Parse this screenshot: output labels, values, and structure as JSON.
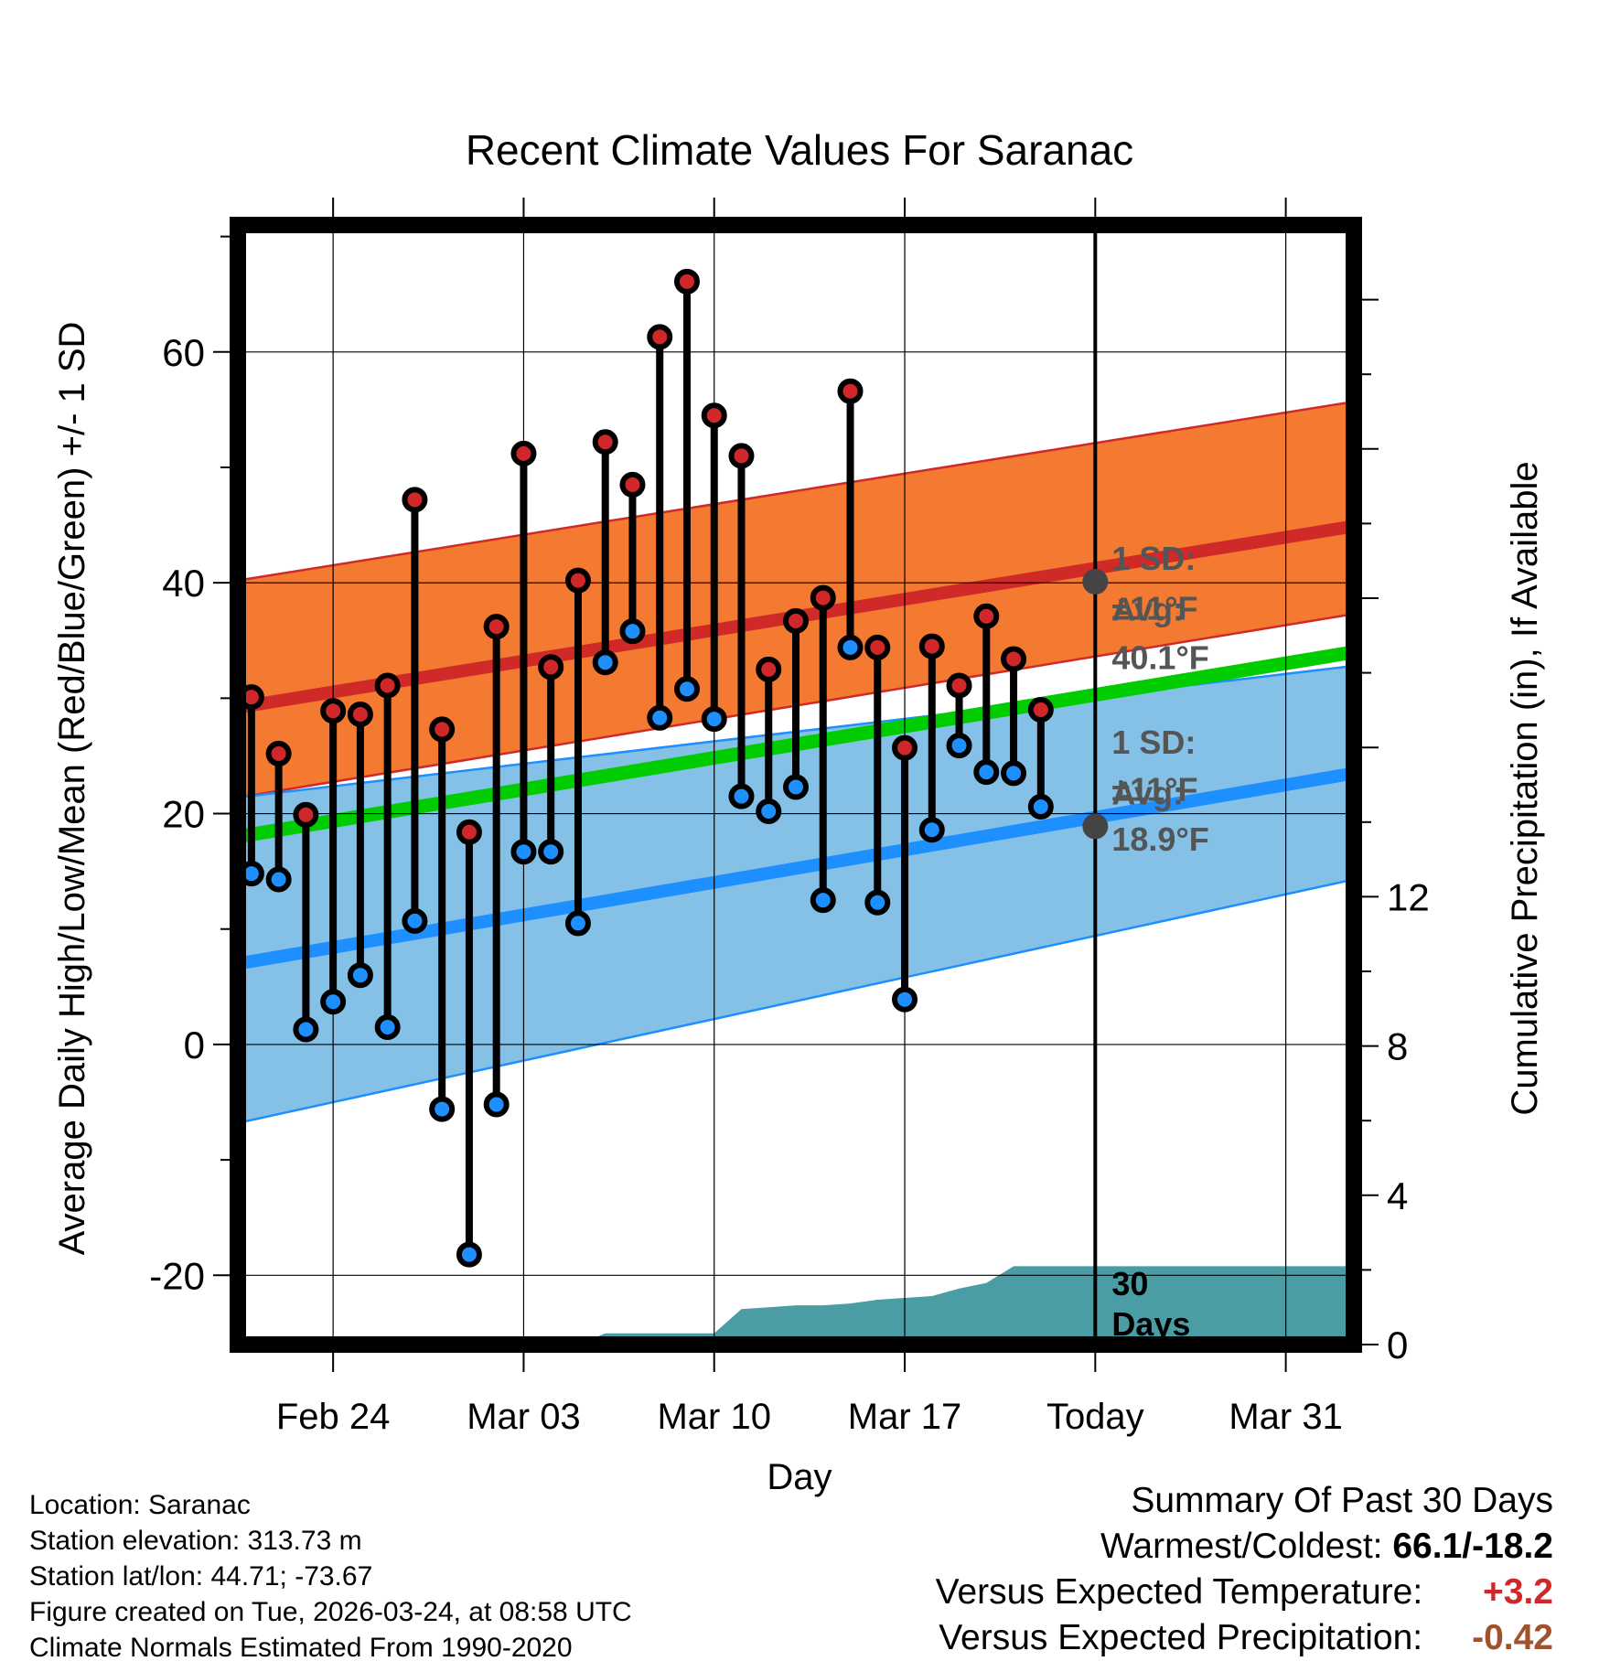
{
  "chart_data": {
    "type": "line",
    "title": "Recent Climate Values For Saranac",
    "xlabel": "Day",
    "ylabel": "Average Daily High/Low/Mean (Red/Blue/Green) +/- 1 SD",
    "y2label": "Cumulative Precipitation (in), If Available",
    "ylim": [
      -26,
      71
    ],
    "y2lim": [
      0,
      30
    ],
    "xlim": [
      -0.5,
      40.5
    ],
    "x_ticks": [
      {
        "day": 3,
        "label": "Feb 24"
      },
      {
        "day": 10,
        "label": "Mar 03"
      },
      {
        "day": 17,
        "label": "Mar 10"
      },
      {
        "day": 24,
        "label": "Mar 17"
      },
      {
        "day": 31,
        "label": "Today"
      },
      {
        "day": 38,
        "label": "Mar 31"
      }
    ],
    "y_ticks": [
      -20,
      0,
      20,
      40,
      60
    ],
    "y2_ticks": [
      0,
      4,
      8,
      12
    ],
    "today_index": 31,
    "observed": {
      "days": [
        0,
        1,
        2,
        3,
        4,
        5,
        6,
        7,
        8,
        9,
        10,
        11,
        12,
        13,
        14,
        15,
        16,
        17,
        18,
        19,
        20,
        21,
        22,
        23,
        24,
        25,
        26,
        27,
        28,
        29
      ],
      "high": [
        30.1,
        25.2,
        19.9,
        28.9,
        28.6,
        31.1,
        47.2,
        27.3,
        18.4,
        36.2,
        51.2,
        32.7,
        40.2,
        52.2,
        48.5,
        61.3,
        66.1,
        54.5,
        51.0,
        32.5,
        36.7,
        38.7,
        56.6,
        34.4,
        25.7,
        34.5,
        31.1,
        37.1,
        33.4,
        29.0
      ],
      "low": [
        14.8,
        14.3,
        1.3,
        3.7,
        6.0,
        1.5,
        10.7,
        -5.6,
        -18.2,
        -5.2,
        16.7,
        16.7,
        10.5,
        33.1,
        35.8,
        28.3,
        30.8,
        28.2,
        21.5,
        20.2,
        22.3,
        12.5,
        34.4,
        12.3,
        3.9,
        18.6,
        25.9,
        23.6,
        23.5,
        20.6
      ]
    },
    "normals": {
      "days": [
        -0.5,
        40.5
      ],
      "high_avg": [
        29.2,
        44.9
      ],
      "high_sd_upper": [
        40.2,
        55.7
      ],
      "high_sd_lower": [
        21.4,
        37.3
      ],
      "low_avg": [
        7.0,
        23.5
      ],
      "low_sd_upper": [
        21.4,
        32.8
      ],
      "low_sd_lower": [
        -6.8,
        14.3
      ],
      "mean_avg": [
        18.0,
        34.0
      ]
    },
    "precip_cumulative": {
      "days": [
        12,
        13,
        14,
        15,
        16,
        17,
        18,
        19,
        20,
        21,
        22,
        23,
        24,
        25,
        26,
        27,
        28,
        29,
        40.5
      ],
      "values": [
        0.0,
        0.3,
        0.3,
        0.3,
        0.3,
        0.3,
        0.95,
        1.0,
        1.05,
        1.05,
        1.1,
        1.2,
        1.25,
        1.3,
        1.5,
        1.65,
        2.1,
        2.1,
        2.1
      ]
    },
    "annotations": {
      "high_sd": "1 SD:",
      "high_sd_value": "±11°F",
      "high_avg": "Avg:",
      "high_avg_value": "40.1°F",
      "low_sd": "1 SD:",
      "low_sd_value": "±11°F",
      "low_avg": "Avg:",
      "low_avg_value": "18.9°F",
      "precip_days": "30",
      "precip_days_label": "Days"
    },
    "colors": {
      "high_band": "#f47a31",
      "high_line": "#d02a28",
      "low_band": "#85c1e6",
      "low_line": "#1e8fff",
      "mean_line": "#00cc00",
      "overlap": "#9c1a1a",
      "precip": "#4a9ca5",
      "high_dot": "#d0282a",
      "low_dot": "#1e8fff",
      "today_marker": "#444444",
      "annotation_text": "#555555"
    }
  },
  "footer": {
    "location": "Location: Saranac",
    "elevation": "Station elevation: 313.73 m",
    "latlon": "Station lat/lon: 44.71; -73.67",
    "created": "Figure created on Tue, 2026-03-24, at 08:58 UTC",
    "normals": "Climate Normals Estimated From 1990-2020"
  },
  "summary": {
    "title": "Summary Of Past 30 Days",
    "warmest_label": "Warmest/Coldest:",
    "warmest_value": "66.1/-18.2",
    "temp_label": "Versus Expected Temperature:",
    "temp_value": "+3.2",
    "temp_color": "#d0282a",
    "precip_label": "Versus Expected Precipitation:",
    "precip_value": "-0.42",
    "precip_color": "#a0522d"
  }
}
